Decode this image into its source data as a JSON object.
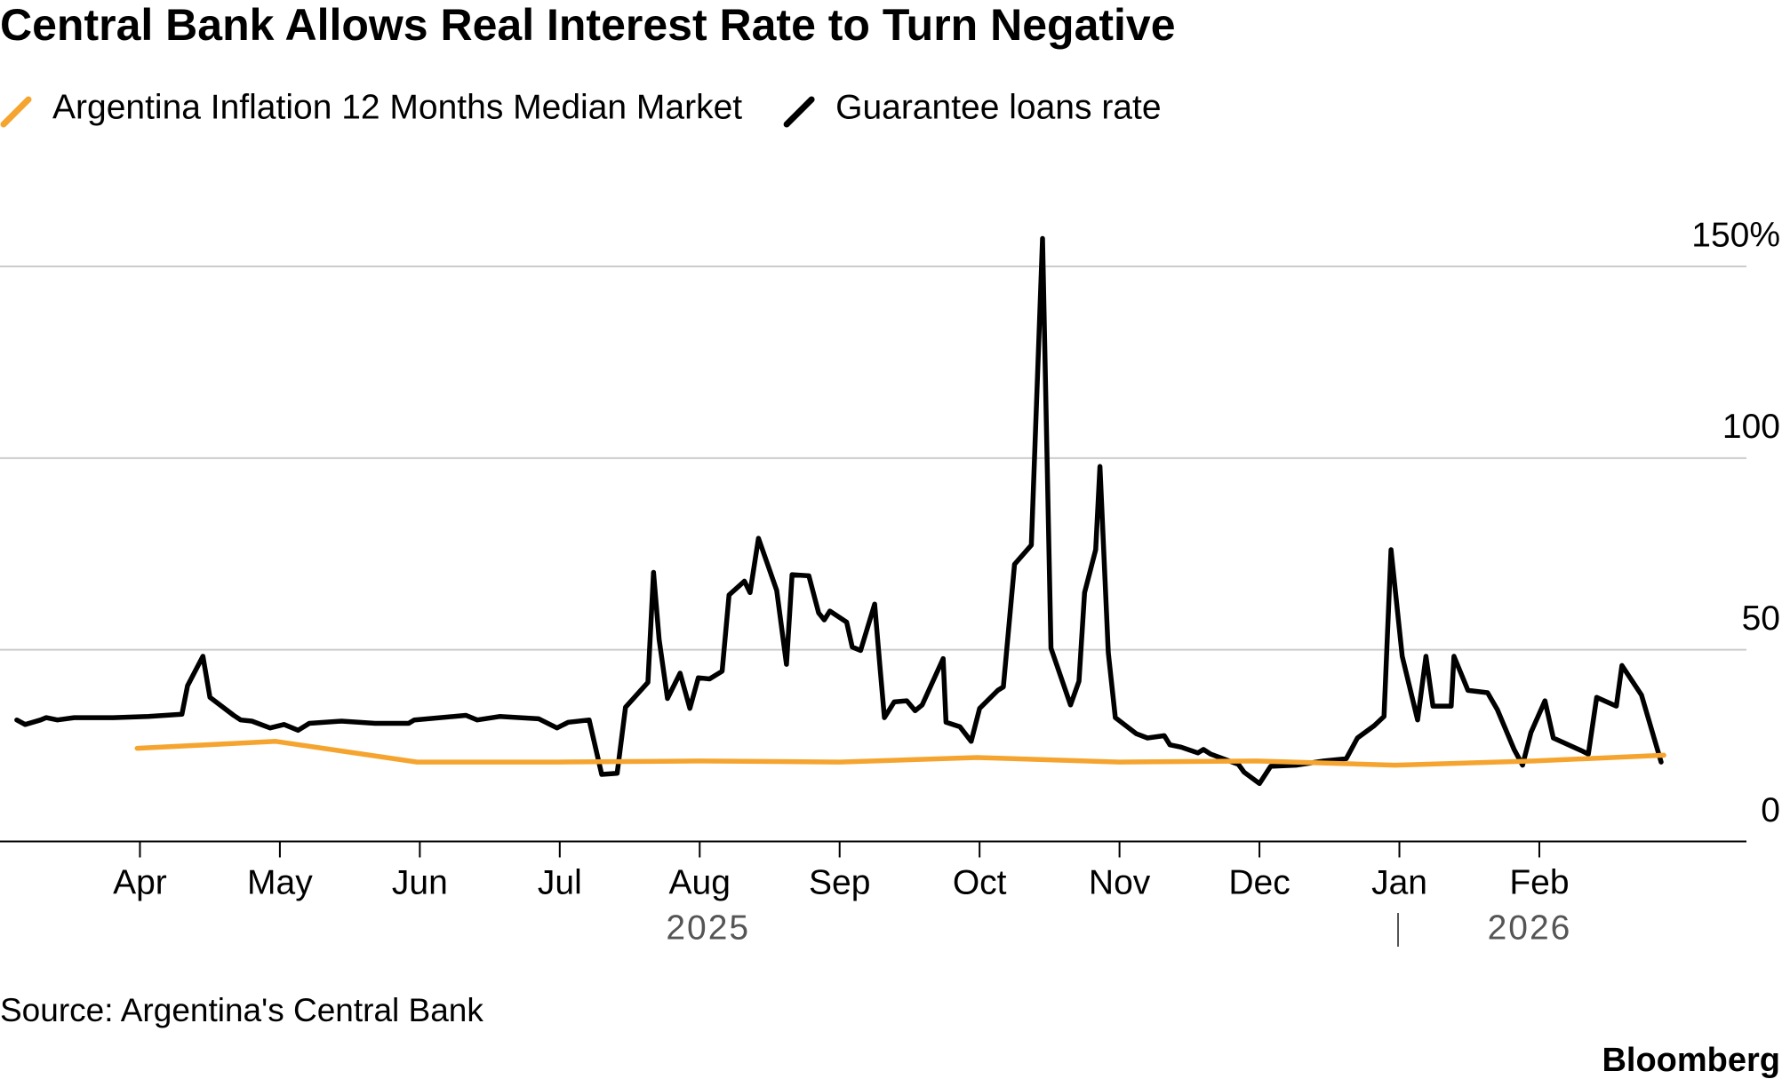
{
  "chart_data": {
    "type": "line",
    "title": "Central Bank Allows Real Interest Rate to Turn Negative",
    "source": "Source: Argentina's Central Bank",
    "brand": "Bloomberg",
    "xlim": [
      -1.0,
      11.48
    ],
    "xticks": [
      {
        "value": 0,
        "label": "Apr"
      },
      {
        "value": 1,
        "label": "May"
      },
      {
        "value": 2,
        "label": "Jun"
      },
      {
        "value": 3,
        "label": "Jul"
      },
      {
        "value": 4,
        "label": "Aug"
      },
      {
        "value": 5,
        "label": "Sep"
      },
      {
        "value": 6,
        "label": "Oct"
      },
      {
        "value": 7,
        "label": "Nov"
      },
      {
        "value": 8,
        "label": "Dec"
      },
      {
        "value": 9,
        "label": "Jan"
      },
      {
        "value": 10,
        "label": "Feb"
      }
    ],
    "year_labels": [
      {
        "value": 4.06,
        "label": "2025"
      },
      {
        "value": 9.93,
        "label": "2026"
      }
    ],
    "ylim": [
      0,
      150
    ],
    "yticks": [
      0,
      50,
      100,
      {
        "value": 150,
        "label": "150%"
      }
    ],
    "grid": true,
    "series": [
      {
        "name": "Argentina Inflation 12 Months Median Market",
        "color": "#f5a52f",
        "x": [
          -0.02,
          0.97,
          1.98,
          2.98,
          3.99,
          5.0,
          5.98,
          7.0,
          7.98,
          8.97,
          9.96,
          10.89
        ],
        "values": [
          24.3,
          26.1,
          20.7,
          20.7,
          21.0,
          20.7,
          21.9,
          20.7,
          21.0,
          19.9,
          21.0,
          22.5
        ]
      },
      {
        "name": "Guarantee loans rate",
        "color": "#000000",
        "x": [
          -0.88,
          -0.82,
          -0.71,
          -0.67,
          -0.59,
          -0.47,
          -0.19,
          0.06,
          0.3,
          0.34,
          0.45,
          0.5,
          0.67,
          0.72,
          0.8,
          0.93,
          1.03,
          1.13,
          1.21,
          1.44,
          1.68,
          1.92,
          1.96,
          2.33,
          2.41,
          2.57,
          2.85,
          2.98,
          3.06,
          3.21,
          3.3,
          3.41,
          3.47,
          3.63,
          3.67,
          3.71,
          3.77,
          3.86,
          3.93,
          3.99,
          4.07,
          4.16,
          4.21,
          4.32,
          4.36,
          4.42,
          4.55,
          4.62,
          4.66,
          4.78,
          4.85,
          4.89,
          4.93,
          5.05,
          5.09,
          5.15,
          5.25,
          5.29,
          5.32,
          5.39,
          5.48,
          5.54,
          5.59,
          5.74,
          5.76,
          5.86,
          5.94,
          6.0,
          6.13,
          6.17,
          6.25,
          6.37,
          6.45,
          6.51,
          6.65,
          6.71,
          6.75,
          6.83,
          6.86,
          6.92,
          6.97,
          7.12,
          7.2,
          7.32,
          7.36,
          7.44,
          7.56,
          7.6,
          7.65,
          7.85,
          7.89,
          8.0,
          8.08,
          8.26,
          8.46,
          8.62,
          8.7,
          8.82,
          8.89,
          8.94,
          9.02,
          9.13,
          9.19,
          9.24,
          9.37,
          9.39,
          9.49,
          9.63,
          9.7,
          9.82,
          9.88,
          9.94,
          10.04,
          10.1,
          10.3,
          10.35,
          10.41,
          10.55,
          10.59,
          10.73,
          10.87
        ],
        "values": [
          31.7,
          30.5,
          31.7,
          32.3,
          31.7,
          32.3,
          32.3,
          32.6,
          33.2,
          40.6,
          48.3,
          37.6,
          32.9,
          31.7,
          31.4,
          29.6,
          30.5,
          29.0,
          30.8,
          31.4,
          30.8,
          30.8,
          31.7,
          32.9,
          31.7,
          32.6,
          32.0,
          29.6,
          31.1,
          31.7,
          17.5,
          17.8,
          35.0,
          41.5,
          70.2,
          52.7,
          37.3,
          43.9,
          34.7,
          42.7,
          42.4,
          44.4,
          64.3,
          67.9,
          64.9,
          79.1,
          65.5,
          46.2,
          69.6,
          69.3,
          59.6,
          57.8,
          60.1,
          57.2,
          50.7,
          49.8,
          61.9,
          44.7,
          32.3,
          36.4,
          36.7,
          34.1,
          35.6,
          47.7,
          31.1,
          29.9,
          26.1,
          34.7,
          39.4,
          40.3,
          72.3,
          77.3,
          157.3,
          50.4,
          35.6,
          41.8,
          64.9,
          76.1,
          97.8,
          49.2,
          32.3,
          28.1,
          27.0,
          27.6,
          25.2,
          24.6,
          23.1,
          24.0,
          22.8,
          20.1,
          18.1,
          15.1,
          19.6,
          19.9,
          21.0,
          21.6,
          27.0,
          30.2,
          32.6,
          76.1,
          48.3,
          31.7,
          48.3,
          35.3,
          35.3,
          48.3,
          39.4,
          38.8,
          34.4,
          24.0,
          19.9,
          28.4,
          36.7,
          27.0,
          23.7,
          22.8,
          37.6,
          35.3,
          45.9,
          38.2,
          20.7
        ]
      }
    ]
  }
}
